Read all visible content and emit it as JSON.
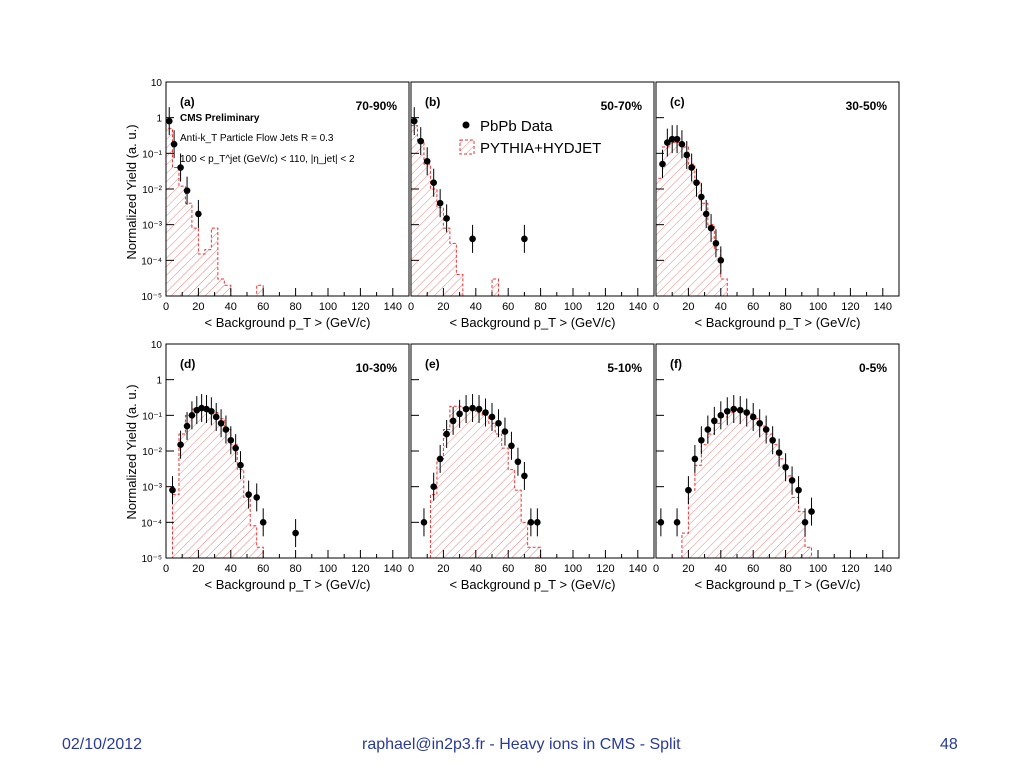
{
  "footer": {
    "date": "02/10/2012",
    "center": "raphael@in2p3.fr - Heavy ions in CMS - Split",
    "page": "48"
  },
  "chart_data": {
    "type": "scatter",
    "y_scale": "log",
    "xlim": [
      0,
      150
    ],
    "ylim": [
      1e-05,
      10
    ],
    "x_ticks": [
      "0",
      "20",
      "40",
      "60",
      "80",
      "100",
      "120",
      "140"
    ],
    "y_ticks": [
      "10⁻⁵",
      "10⁻⁴",
      "10⁻³",
      "10⁻²",
      "10⁻¹",
      "1",
      "10"
    ],
    "xlabel": "< Background p_T > (GeV/c)",
    "ylabel": "Normalized Yield (a. u.)",
    "legend": {
      "position": "top-left of panel (b)",
      "entries": [
        {
          "name": "PbPb Data",
          "style": "black filled circles",
          "color": "#000000"
        },
        {
          "name": "PYTHIA+HYDJET",
          "style": "red dashed hatched histogram",
          "color": "#ee3333"
        }
      ]
    },
    "annotations": {
      "label": "CMS Preliminary",
      "jets": "Anti-k_T Particle Flow Jets R = 0.3",
      "cuts": "100 < p_T^jet (GeV/c) < 110, |η_jet| < 2"
    },
    "panels": [
      {
        "tag": "(a)",
        "centrality": "70-90%",
        "data": [
          [
            2,
            0.8
          ],
          [
            5,
            0.18
          ],
          [
            9,
            0.04
          ],
          [
            13,
            0.009
          ],
          [
            20,
            0.002
          ]
        ],
        "mc": [
          [
            0,
            0.5
          ],
          [
            4,
            0.04
          ],
          [
            8,
            0.012
          ],
          [
            12,
            0.004
          ],
          [
            16,
            0.0008
          ],
          [
            20,
            0.00015
          ],
          [
            24,
            0.0002
          ],
          [
            28,
            0.0008
          ],
          [
            32,
            3e-05
          ],
          [
            36,
            2e-05
          ],
          [
            56,
            2e-05
          ]
        ]
      },
      {
        "tag": "(b)",
        "centrality": "50-70%",
        "data": [
          [
            2,
            0.8
          ],
          [
            6,
            0.22
          ],
          [
            10,
            0.06
          ],
          [
            14,
            0.015
          ],
          [
            18,
            0.004
          ],
          [
            22,
            0.0015
          ],
          [
            38,
            0.0004
          ],
          [
            70,
            0.0004
          ]
        ],
        "mc": [
          [
            0,
            0.6
          ],
          [
            4,
            0.2
          ],
          [
            8,
            0.05
          ],
          [
            12,
            0.01
          ],
          [
            16,
            0.003
          ],
          [
            20,
            0.0008
          ],
          [
            24,
            0.0003
          ],
          [
            28,
            4e-05
          ],
          [
            32,
            1e-05
          ],
          [
            36,
            1e-05
          ],
          [
            50,
            3e-05
          ]
        ]
      },
      {
        "tag": "(c)",
        "centrality": "30-50%",
        "data": [
          [
            4,
            0.05
          ],
          [
            7,
            0.2
          ],
          [
            10,
            0.25
          ],
          [
            13,
            0.25
          ],
          [
            16,
            0.18
          ],
          [
            19,
            0.09
          ],
          [
            22,
            0.04
          ],
          [
            25,
            0.015
          ],
          [
            28,
            0.006
          ],
          [
            31,
            0.002
          ],
          [
            34,
            0.0008
          ],
          [
            37,
            0.0003
          ],
          [
            40,
            0.0001
          ]
        ],
        "mc": [
          [
            0,
            0.02
          ],
          [
            4,
            0.15
          ],
          [
            8,
            0.2
          ],
          [
            12,
            0.2
          ],
          [
            16,
            0.15
          ],
          [
            20,
            0.05
          ],
          [
            24,
            0.015
          ],
          [
            28,
            0.004
          ],
          [
            32,
            0.001
          ],
          [
            36,
            0.0002
          ],
          [
            40,
            3e-05
          ]
        ]
      },
      {
        "tag": "(d)",
        "centrality": "10-30%",
        "data": [
          [
            4,
            0.0008
          ],
          [
            9,
            0.015
          ],
          [
            13,
            0.05
          ],
          [
            16,
            0.1
          ],
          [
            19,
            0.14
          ],
          [
            22,
            0.16
          ],
          [
            25,
            0.15
          ],
          [
            28,
            0.13
          ],
          [
            31,
            0.09
          ],
          [
            34,
            0.06
          ],
          [
            37,
            0.04
          ],
          [
            40,
            0.02
          ],
          [
            43,
            0.012
          ],
          [
            46,
            0.004
          ],
          [
            51,
            0.0006
          ],
          [
            56,
            0.0005
          ],
          [
            60,
            0.0001
          ],
          [
            80,
            5e-05
          ]
        ],
        "mc": [
          [
            0,
            1e-05
          ],
          [
            4,
            0.0006
          ],
          [
            8,
            0.03
          ],
          [
            12,
            0.1
          ],
          [
            16,
            0.15
          ],
          [
            20,
            0.16
          ],
          [
            24,
            0.15
          ],
          [
            28,
            0.12
          ],
          [
            32,
            0.08
          ],
          [
            36,
            0.04
          ],
          [
            40,
            0.015
          ],
          [
            44,
            0.003
          ],
          [
            48,
            0.0005
          ],
          [
            52,
            8e-05
          ],
          [
            56,
            2e-05
          ]
        ]
      },
      {
        "tag": "(e)",
        "centrality": "5-10%",
        "data": [
          [
            8,
            0.0001
          ],
          [
            14,
            0.001
          ],
          [
            18,
            0.006
          ],
          [
            22,
            0.03
          ],
          [
            26,
            0.07
          ],
          [
            30,
            0.11
          ],
          [
            34,
            0.15
          ],
          [
            38,
            0.16
          ],
          [
            42,
            0.15
          ],
          [
            46,
            0.12
          ],
          [
            50,
            0.09
          ],
          [
            54,
            0.06
          ],
          [
            58,
            0.035
          ],
          [
            62,
            0.014
          ],
          [
            66,
            0.005
          ],
          [
            70,
            0.002
          ],
          [
            74,
            0.0001
          ],
          [
            78,
            0.0001
          ]
        ],
        "mc": [
          [
            12,
            0.0006
          ],
          [
            16,
            0.006
          ],
          [
            20,
            0.04
          ],
          [
            24,
            0.18
          ],
          [
            28,
            0.18
          ],
          [
            32,
            0.16
          ],
          [
            36,
            0.14
          ],
          [
            40,
            0.12
          ],
          [
            44,
            0.1
          ],
          [
            48,
            0.06
          ],
          [
            52,
            0.03
          ],
          [
            56,
            0.012
          ],
          [
            60,
            0.003
          ],
          [
            64,
            0.0008
          ],
          [
            68,
            0.0001
          ],
          [
            72,
            2e-05
          ],
          [
            76,
            2e-05
          ],
          [
            80,
            1e-05
          ]
        ]
      },
      {
        "tag": "(f)",
        "centrality": "0-5%",
        "data": [
          [
            3,
            0.0001
          ],
          [
            13,
            0.0001
          ],
          [
            20,
            0.0008
          ],
          [
            24,
            0.006
          ],
          [
            28,
            0.02
          ],
          [
            32,
            0.04
          ],
          [
            36,
            0.07
          ],
          [
            40,
            0.1
          ],
          [
            44,
            0.13
          ],
          [
            48,
            0.15
          ],
          [
            52,
            0.14
          ],
          [
            56,
            0.12
          ],
          [
            60,
            0.09
          ],
          [
            64,
            0.06
          ],
          [
            68,
            0.04
          ],
          [
            72,
            0.02
          ],
          [
            76,
            0.009
          ],
          [
            80,
            0.0035
          ],
          [
            84,
            0.0015
          ],
          [
            88,
            0.0008
          ],
          [
            92,
            0.0001
          ],
          [
            96,
            0.0002
          ]
        ],
        "mc": [
          [
            16,
            5e-05
          ],
          [
            20,
            0.0008
          ],
          [
            24,
            0.004
          ],
          [
            28,
            0.015
          ],
          [
            32,
            0.03
          ],
          [
            36,
            0.06
          ],
          [
            40,
            0.09
          ],
          [
            44,
            0.12
          ],
          [
            48,
            0.14
          ],
          [
            52,
            0.13
          ],
          [
            56,
            0.11
          ],
          [
            60,
            0.08
          ],
          [
            64,
            0.05
          ],
          [
            68,
            0.03
          ],
          [
            72,
            0.015
          ],
          [
            76,
            0.006
          ],
          [
            80,
            0.002
          ],
          [
            84,
            0.0005
          ],
          [
            88,
            0.0002
          ],
          [
            92,
            2e-05
          ],
          [
            96,
            1e-05
          ]
        ]
      }
    ]
  }
}
